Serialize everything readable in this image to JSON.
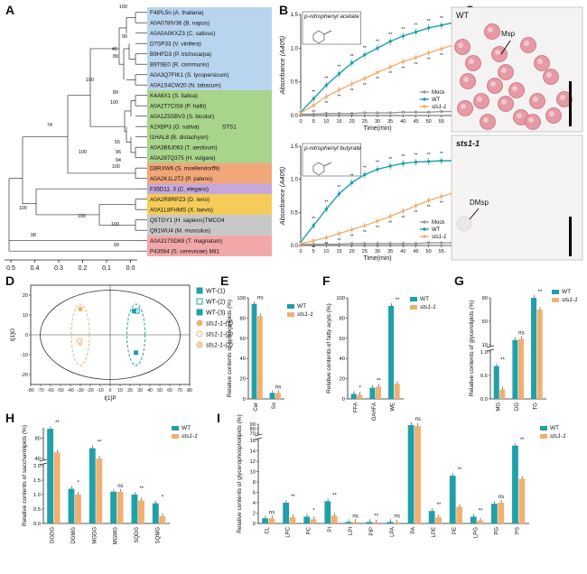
{
  "panel_labels": [
    "A",
    "B",
    "C",
    "D",
    "E",
    "F",
    "G",
    "H",
    "I"
  ],
  "colors": {
    "wt": "#20a0a8",
    "sts": "#f0b070",
    "mock": "#999999",
    "blue_box": "#b8d4ee",
    "green_box": "#a8d48c",
    "orange_box": "#f2a77a",
    "purple_box": "#c6a8dc",
    "yellow_box": "#f5cc5a",
    "grey_box": "#c8c8c8",
    "pink_box": "#f2a8a8",
    "highlight": "#e02020"
  },
  "tree": {
    "groups": [
      {
        "color": "blue",
        "taxa": [
          "F4IPL5n (A. thaliana)",
          "A0A078IV36 (B. napus)",
          "A0A0A0KXZ3 (C. sativus)",
          "D7SP33 (V. vinifera)",
          "B9HFD3 (P. trichocarpa)",
          "B9T6E0 (R. communis)",
          "A0A3Q7FIK1 (S. lycopersicum)",
          "A0A1S4CW20 (N. tabacum)"
        ]
      },
      {
        "color": "green",
        "taxa": [
          "K4A6X1 (S. italica)",
          "A0A2T7CIS8 (P. hallii)",
          "A0A1Z5SBV3 (S. bicolor)",
          "A2XBP3 (O. sativa)",
          "I1HAL8 (B. distachyon)",
          "A0A3B6J063 (T. aestivum)",
          "A0A287Q375 (H. vulgare)"
        ]
      },
      {
        "color": "orange",
        "taxa": [
          "D8RXW6 (S. moellendorffii)",
          "A0A2K1L2T2 (P. patens)"
        ]
      },
      {
        "color": "purple",
        "taxa": [
          "F35D11. 3 (C. elegans)"
        ]
      },
      {
        "color": "yellow",
        "taxa": [
          "A0A2R8RPZ3 (D. rerio)",
          "A0A1L8FHMS (X. laevis)"
        ]
      },
      {
        "color": "grey",
        "taxa": [
          "Q5TGY1 (H. sapiens)TMCO4",
          "Q91WU4 (M. musculus)"
        ]
      },
      {
        "color": "pink",
        "taxa": [
          "A0A317SD69 (T. magnatum)",
          "P43564 (S. cerevisiae) Mil1"
        ]
      }
    ],
    "highlight_label": "STS1",
    "bootstrap": [
      "100",
      "99",
      "46",
      "89",
      "100",
      "74",
      "89",
      "100",
      "55",
      "96",
      "94",
      "100",
      "100",
      "98",
      "100",
      "100",
      "99",
      "100"
    ],
    "scale_ticks": [
      "0.5",
      "0.4",
      "0.3",
      "0.2",
      "0.1",
      "0.0"
    ]
  },
  "panel_b": {
    "top_title": "p-nitrophenyl acetate",
    "bottom_title": "p-nitrophenyl butyrate",
    "ylabel": "Absorbance (A405)",
    "xlabel": "Time(min)",
    "x_ticks": [
      "0",
      "5",
      "10",
      "15",
      "20",
      "25",
      "30",
      "35",
      "40",
      "45",
      "50",
      "55",
      "60"
    ],
    "top_y_ticks": [
      "0.0",
      "0.5",
      "1.0",
      "1.5"
    ],
    "bottom_y_ticks": [
      "0.0",
      "0.5",
      "1.0",
      "1.5"
    ],
    "legend": [
      "Mock",
      "WT",
      "sts1-1"
    ],
    "star": "**"
  },
  "panel_c": {
    "top_label": "WT",
    "top_arrow": "Msp",
    "bottom_label": "sts1-1",
    "bottom_arrow": "DMsp"
  },
  "panel_d": {
    "xlabel": "t[1]P",
    "ylabel": "t[1]O",
    "x_ticks": [
      "-80",
      "-70",
      "-60",
      "-50",
      "-40",
      "-30",
      "-20",
      "-10",
      "0",
      "10",
      "20",
      "30",
      "40",
      "50",
      "60",
      "70",
      "80"
    ],
    "y_ticks": [
      "-20",
      "-10",
      "0",
      "10",
      "20"
    ],
    "legend": [
      "WT-(1)",
      "WT-(2)",
      "WT-(3)",
      "sts1-1-(1)",
      "sts1-1-(2)",
      "sts1-1-(3)"
    ]
  },
  "chart_data": [
    {
      "type": "line",
      "panel": "B-top",
      "title": "p-nitrophenyl acetate",
      "xlabel": "Time(min)",
      "ylabel": "Absorbance (A405)",
      "x": [
        0,
        5,
        10,
        15,
        20,
        25,
        30,
        35,
        40,
        45,
        50,
        55,
        60
      ],
      "ylim": [
        0,
        1.5
      ],
      "series": [
        {
          "name": "Mock",
          "values": [
            0.02,
            0.02,
            0.03,
            0.03,
            0.03,
            0.04,
            0.04,
            0.04,
            0.05,
            0.05,
            0.05,
            0.06,
            0.06
          ]
        },
        {
          "name": "WT",
          "values": [
            0.05,
            0.25,
            0.45,
            0.62,
            0.78,
            0.9,
            1.0,
            1.1,
            1.18,
            1.24,
            1.3,
            1.34,
            1.38
          ]
        },
        {
          "name": "sts1-1",
          "values": [
            0.04,
            0.15,
            0.28,
            0.38,
            0.47,
            0.55,
            0.64,
            0.72,
            0.8,
            0.86,
            0.93,
            0.99,
            1.05
          ]
        }
      ]
    },
    {
      "type": "line",
      "panel": "B-bottom",
      "title": "p-nitrophenyl butyrate",
      "xlabel": "Time(min)",
      "ylabel": "Absorbance (A405)",
      "x": [
        0,
        5,
        10,
        15,
        20,
        25,
        30,
        35,
        40,
        45,
        50,
        55,
        60
      ],
      "ylim": [
        0,
        1.5
      ],
      "series": [
        {
          "name": "Mock",
          "values": [
            0.02,
            0.02,
            0.02,
            0.02,
            0.03,
            0.03,
            0.03,
            0.03,
            0.03,
            0.03,
            0.04,
            0.04,
            0.04
          ]
        },
        {
          "name": "WT",
          "values": [
            0.05,
            0.3,
            0.55,
            0.78,
            0.95,
            1.07,
            1.15,
            1.2,
            1.24,
            1.26,
            1.27,
            1.28,
            1.28
          ]
        },
        {
          "name": "sts1-1",
          "values": [
            0.03,
            0.07,
            0.12,
            0.18,
            0.24,
            0.3,
            0.37,
            0.44,
            0.52,
            0.6,
            0.68,
            0.74,
            0.8
          ]
        }
      ]
    },
    {
      "type": "bar",
      "panel": "E",
      "ylabel": "Relative contents of sphingolipids (%)",
      "categories": [
        "Cer",
        "So"
      ],
      "ylim": [
        0,
        100
      ],
      "y_ticks": [
        "0",
        "20",
        "40",
        "60",
        "80",
        "100"
      ],
      "series": [
        {
          "name": "WT",
          "values": [
            94,
            6
          ]
        },
        {
          "name": "sts1-1",
          "values": [
            82,
            6
          ]
        }
      ],
      "significance": [
        "ns",
        "ns"
      ]
    },
    {
      "type": "bar",
      "panel": "F",
      "ylabel": "Relative contents of fatty acyls (%)",
      "categories": [
        "FFA",
        "OAHFA",
        "WE"
      ],
      "ylim": [
        0,
        100
      ],
      "y_ticks": [
        "0",
        "20",
        "40",
        "60",
        "80",
        "100"
      ],
      "series": [
        {
          "name": "WT",
          "values": [
            5,
            11,
            92
          ]
        },
        {
          "name": "sts1-1",
          "values": [
            4,
            12,
            15
          ]
        }
      ],
      "significance": [
        "*",
        "**",
        "**"
      ]
    },
    {
      "type": "bar",
      "panel": "G",
      "ylabel": "Relative contents of glycerolipids (%)",
      "categories": [
        "MG",
        "DG",
        "TG"
      ],
      "axis_break": true,
      "y_ticks": [
        "0.0",
        "0.5",
        "1.0",
        "10",
        "50",
        "90"
      ],
      "series": [
        {
          "name": "WT",
          "values": [
            0.7,
            18,
            90
          ]
        },
        {
          "name": "sts1-1",
          "values": [
            0.2,
            20,
            70
          ]
        }
      ],
      "significance": [
        "**",
        "ns",
        "**"
      ]
    },
    {
      "type": "bar",
      "panel": "H",
      "ylabel": "Relative contents of saccharolipids (%)",
      "categories": [
        "DGDG",
        "DGMG",
        "MGDG",
        "MGMG",
        "SQDG",
        "SQMG"
      ],
      "axis_break": true,
      "y_ticks": [
        "0.0",
        "0.5",
        "1.0",
        "1.5",
        "2.0",
        "40",
        "80"
      ],
      "series": [
        {
          "name": "WT",
          "values": [
            98,
            1.2,
            60,
            1.1,
            1.0,
            0.7
          ]
        },
        {
          "name": "sts1-1",
          "values": [
            52,
            1.0,
            30,
            1.1,
            0.8,
            0.25
          ]
        }
      ],
      "significance": [
        "**",
        "*",
        "**",
        "ns",
        "**",
        "*"
      ]
    },
    {
      "type": "bar",
      "panel": "I",
      "ylabel": "Relative contents of glycerophospholipids (%)",
      "categories": [
        "CL",
        "LPC",
        "PC",
        "PI",
        "LPI",
        "PIP",
        "LPA",
        "PA",
        "LPE",
        "PE",
        "LPG",
        "PG",
        "PS"
      ],
      "axis_break": true,
      "y_ticks": [
        "0",
        "2",
        "4",
        "6",
        "8",
        "10",
        "12",
        "14",
        "16",
        "70",
        "80",
        "90"
      ],
      "series": [
        {
          "name": "WT",
          "values": [
            1.0,
            4.0,
            1.3,
            4.3,
            0.3,
            0.3,
            0.3,
            88,
            2.4,
            9.2,
            1.3,
            3.8,
            15.0
          ]
        },
        {
          "name": "sts1-1",
          "values": [
            1.0,
            1.2,
            0.8,
            1.5,
            0.3,
            0.2,
            0.2,
            86,
            1.2,
            3.2,
            0.6,
            4.0,
            8.6
          ]
        }
      ],
      "significance": [
        "ns",
        "**",
        "*",
        "**",
        "ns",
        "**",
        "ns",
        "ns",
        "**",
        "**",
        "**",
        "ns",
        "**"
      ]
    }
  ]
}
